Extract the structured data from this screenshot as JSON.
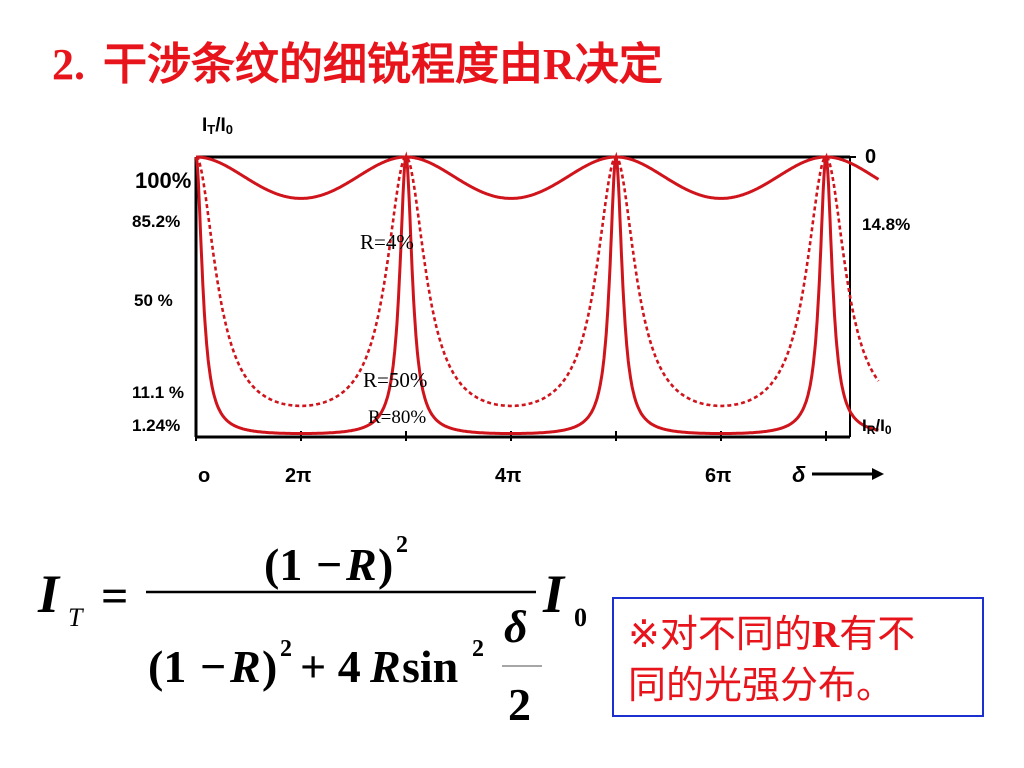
{
  "title": {
    "number": "2.",
    "text_before": "干涉条纹的细锐程度由",
    "text_R": "R",
    "text_after": "决定"
  },
  "colors": {
    "title": "#e8141c",
    "curve": "#d0141c",
    "note_border": "#1c2fd0"
  },
  "chart_data": {
    "type": "line",
    "y_axis_title": "I_T/I_0",
    "y_axis_title_right": "I_R/I_0",
    "y_ticks_left": [
      "100%",
      "85.2%",
      "50 %",
      "11.1 %",
      "1.24%"
    ],
    "y_ticks_right": [
      "0",
      "14.8%"
    ],
    "x_ticks": [
      "o",
      "2π",
      "4π",
      "6π"
    ],
    "x_axis_label": "δ",
    "x_range": [
      0,
      6.5
    ],
    "y_range": [
      0,
      1
    ],
    "series": [
      {
        "name": "R=4%",
        "R": 0.04,
        "style": "solid",
        "min": 0.852
      },
      {
        "name": "R=50%",
        "R": 0.5,
        "style": "dashed",
        "min": 0.111
      },
      {
        "name": "R=80%",
        "R": 0.8,
        "style": "solid",
        "min": 0.0124
      }
    ]
  },
  "formula": {
    "lhs": "I",
    "lhs_sub": "T",
    "eq": "=",
    "num_open": "(1",
    "minus": "−",
    "R": "R",
    "close": ")",
    "exp2": "2",
    "plus": "+ 4",
    "sin": "sin",
    "delta": "δ",
    "two": "2",
    "rhs": "I",
    "rhs_sub": "0"
  },
  "note": {
    "line1_before": "※对不同的",
    "line1_R": "R",
    "line1_after": "有不",
    "line2": "同的光强分布。"
  }
}
